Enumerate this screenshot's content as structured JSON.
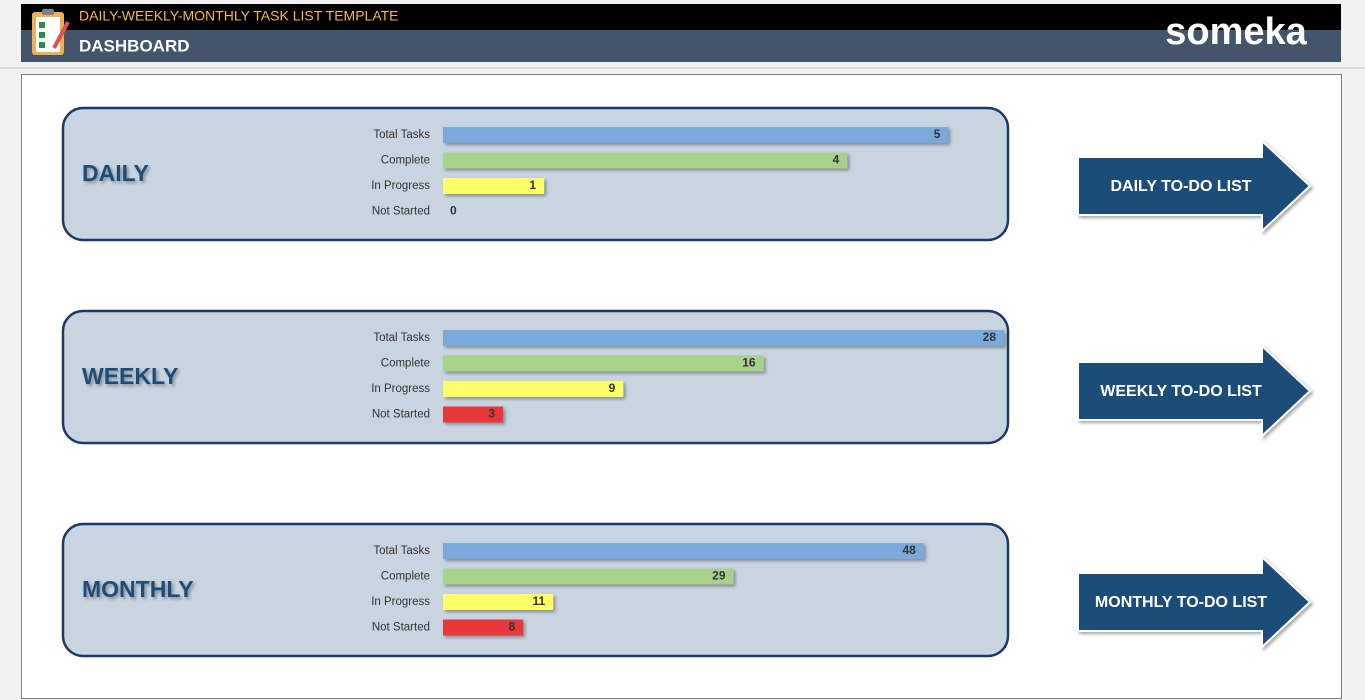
{
  "header": {
    "template_title": "DAILY-WEEKLY-MONTHLY TASK LIST TEMPLATE",
    "page_title": "DASHBOARD",
    "logo": "someka"
  },
  "buttons": [
    "DAILY TO-DO LIST",
    "WEEKLY TO-DO LIST",
    "MONTHLY TO-DO LIST"
  ],
  "chart_data": [
    {
      "type": "bar",
      "orientation": "horizontal",
      "title": "DAILY",
      "categories": [
        "Total Tasks",
        "Complete",
        "In Progress",
        "Not Started"
      ],
      "values": [
        5,
        4,
        1,
        0
      ],
      "colors": [
        "#7aa9dc",
        "#a9d18e",
        "#ffff66",
        "#e8383b"
      ],
      "xlim": [
        0,
        5.55
      ]
    },
    {
      "type": "bar",
      "orientation": "horizontal",
      "title": "WEEKLY",
      "categories": [
        "Total Tasks",
        "Complete",
        "In Progress",
        "Not Started"
      ],
      "values": [
        28,
        16,
        9,
        3
      ],
      "colors": [
        "#7aa9dc",
        "#a9d18e",
        "#ffff66",
        "#e8383b"
      ],
      "xlim": [
        0,
        28
      ]
    },
    {
      "type": "bar",
      "orientation": "horizontal",
      "title": "MONTHLY",
      "categories": [
        "Total Tasks",
        "Complete",
        "In Progress",
        "Not Started"
      ],
      "values": [
        48,
        29,
        11,
        8
      ],
      "colors": [
        "#7aa9dc",
        "#a9d18e",
        "#ffff66",
        "#e8383b"
      ],
      "xlim": [
        0,
        56
      ]
    }
  ]
}
